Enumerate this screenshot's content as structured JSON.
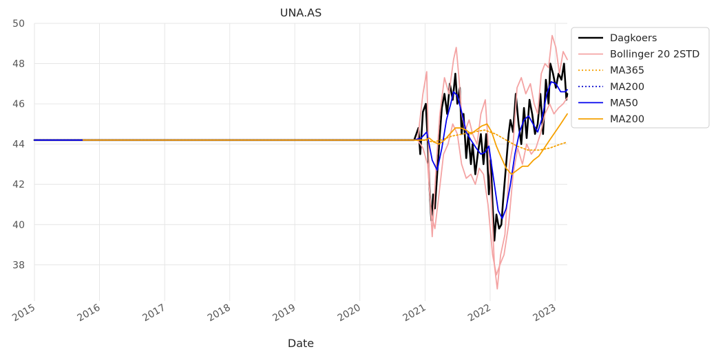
{
  "chart_data": {
    "type": "line",
    "title": "UNA.AS",
    "xlabel": "Date",
    "ylabel": "",
    "xlim": [
      "2015-01-01",
      "2023-03-10"
    ],
    "ylim": [
      36.2,
      50.0
    ],
    "y_ticks": [
      38,
      40,
      42,
      44,
      46,
      48,
      50
    ],
    "x_ticks": [
      "2015",
      "2016",
      "2017",
      "2018",
      "2019",
      "2020",
      "2021",
      "2022",
      "2023"
    ],
    "grid": true,
    "legend_position": "outside-upper-right",
    "series": [
      {
        "name": "Dagkoers",
        "color": "#000000",
        "style": "solid",
        "x": [
          "2015-01-01",
          "2020-11-01",
          "2020-11-25",
          "2020-12-05",
          "2020-12-20",
          "2021-01-05",
          "2021-01-15",
          "2021-01-25",
          "2021-02-05",
          "2021-02-15",
          "2021-02-25",
          "2021-03-10",
          "2021-03-25",
          "2021-04-05",
          "2021-04-20",
          "2021-05-05",
          "2021-05-20",
          "2021-06-05",
          "2021-06-20",
          "2021-07-01",
          "2021-07-15",
          "2021-07-25",
          "2021-08-05",
          "2021-08-20",
          "2021-09-01",
          "2021-09-15",
          "2021-09-25",
          "2021-10-10",
          "2021-10-25",
          "2021-11-10",
          "2021-11-25",
          "2021-12-10",
          "2021-12-25",
          "2022-01-05",
          "2022-01-15",
          "2022-01-25",
          "2022-02-05",
          "2022-02-20",
          "2022-03-05",
          "2022-03-15",
          "2022-04-01",
          "2022-04-15",
          "2022-04-25",
          "2022-05-10",
          "2022-05-25",
          "2022-06-10",
          "2022-06-25",
          "2022-07-10",
          "2022-07-25",
          "2022-08-10",
          "2022-08-25",
          "2022-09-10",
          "2022-09-25",
          "2022-10-10",
          "2022-10-25",
          "2022-11-10",
          "2022-11-25",
          "2022-12-05",
          "2022-12-20",
          "2023-01-05",
          "2023-01-20",
          "2023-02-05",
          "2023-02-20",
          "2023-03-05",
          "2023-03-10"
        ],
        "y": [
          44.2,
          44.2,
          44.8,
          43.5,
          45.6,
          46.0,
          44.3,
          42.0,
          40.2,
          41.5,
          40.8,
          42.5,
          44.5,
          45.8,
          46.5,
          45.5,
          47.0,
          46.2,
          47.5,
          46.0,
          46.8,
          44.5,
          45.5,
          43.3,
          44.5,
          43.0,
          44.0,
          42.5,
          43.6,
          44.5,
          43.0,
          44.5,
          41.5,
          43.2,
          41.0,
          39.2,
          40.5,
          39.8,
          40.0,
          41.2,
          43.0,
          44.5,
          45.2,
          44.6,
          46.5,
          45.0,
          44.0,
          45.8,
          44.3,
          46.2,
          45.5,
          44.5,
          45.0,
          46.5,
          44.5,
          47.2,
          46.0,
          48.0,
          47.5,
          46.8,
          47.5,
          47.2,
          48.0,
          46.2,
          46.5
        ]
      },
      {
        "name": "Bollinger 20 2STD",
        "color": "#f4a3a3",
        "style": "solid",
        "x": [
          "2015-01-01",
          "2020-11-20",
          "2020-12-20",
          "2021-01-10",
          "2021-01-25",
          "2021-02-10",
          "2021-03-05",
          "2021-03-25",
          "2021-04-20",
          "2021-05-15",
          "2021-06-10",
          "2021-06-25",
          "2021-07-10",
          "2021-07-25",
          "2021-08-15",
          "2021-09-05",
          "2021-09-25",
          "2021-10-20",
          "2021-11-10",
          "2021-12-05",
          "2021-12-25",
          "2022-01-10",
          "2022-01-25",
          "2022-02-10",
          "2022-03-01",
          "2022-03-25",
          "2022-04-20",
          "2022-05-10",
          "2022-06-01",
          "2022-06-25",
          "2022-07-20",
          "2022-08-15",
          "2022-09-05",
          "2022-09-25",
          "2022-10-15",
          "2022-11-05",
          "2022-11-25",
          "2022-12-15",
          "2023-01-05",
          "2023-01-25",
          "2023-02-15",
          "2023-03-10"
        ],
        "y": [
          44.2,
          44.2,
          46.5,
          47.6,
          42.0,
          39.4,
          43.0,
          45.5,
          47.3,
          46.5,
          48.2,
          48.8,
          47.3,
          45.5,
          44.7,
          45.2,
          44.5,
          44.0,
          45.5,
          46.2,
          43.5,
          41.0,
          38.0,
          36.8,
          38.5,
          39.5,
          43.0,
          44.0,
          46.8,
          47.3,
          46.5,
          47.0,
          46.0,
          45.5,
          47.5,
          48.0,
          47.8,
          49.4,
          48.8,
          47.5,
          48.6,
          48.2
        ]
      },
      {
        "name": "Bollinger 20 2STD",
        "color": "#f4a3a3",
        "style": "solid",
        "x": [
          "2020-11-20",
          "2020-12-20",
          "2021-01-15",
          "2021-02-05",
          "2021-02-25",
          "2021-03-20",
          "2021-04-15",
          "2021-05-10",
          "2021-06-05",
          "2021-07-01",
          "2021-07-25",
          "2021-08-20",
          "2021-09-15",
          "2021-10-10",
          "2021-11-01",
          "2021-11-25",
          "2021-12-20",
          "2022-01-15",
          "2022-02-05",
          "2022-02-25",
          "2022-03-20",
          "2022-04-15",
          "2022-05-10",
          "2022-06-05",
          "2022-07-01",
          "2022-07-25",
          "2022-08-20",
          "2022-09-15",
          "2022-10-10",
          "2022-11-05",
          "2022-12-01",
          "2022-12-25",
          "2023-01-20",
          "2023-02-15",
          "2023-03-10"
        ],
        "y": [
          44.2,
          43.8,
          43.0,
          40.5,
          39.8,
          41.5,
          43.5,
          44.0,
          45.0,
          44.5,
          43.0,
          42.3,
          42.5,
          42.0,
          42.8,
          42.5,
          41.0,
          38.5,
          37.5,
          38.0,
          38.5,
          40.0,
          42.5,
          43.8,
          43.0,
          44.0,
          43.5,
          43.8,
          44.5,
          45.5,
          46.0,
          45.5,
          45.8,
          46.0,
          46.3
        ]
      },
      {
        "name": "MA365",
        "color": "#f5a000",
        "style": "dotted",
        "x": [
          "2015-01-01",
          "2021-01-01",
          "2021-02-15",
          "2021-04-01",
          "2021-06-01",
          "2021-08-01",
          "2021-10-01",
          "2021-12-01",
          "2022-02-01",
          "2022-04-01",
          "2022-06-01",
          "2022-08-01",
          "2022-10-01",
          "2022-12-01",
          "2023-02-01",
          "2023-03-10"
        ],
        "y": [
          44.2,
          44.2,
          44.1,
          44.2,
          44.4,
          44.5,
          44.6,
          44.7,
          44.5,
          44.2,
          43.9,
          43.7,
          43.7,
          43.8,
          44.0,
          44.1
        ]
      },
      {
        "name": "MA200",
        "color": "#1010d0",
        "style": "dotted",
        "x": [
          "2015-01-01",
          "2015-10-01"
        ],
        "y": [
          44.2,
          44.2
        ]
      },
      {
        "name": "MA50",
        "color": "#0000ee",
        "style": "solid",
        "x": [
          "2015-01-01",
          "2020-11-01",
          "2020-12-10",
          "2021-01-10",
          "2021-02-10",
          "2021-03-10",
          "2021-04-05",
          "2021-05-01",
          "2021-05-25",
          "2021-06-10",
          "2021-07-01",
          "2021-07-25",
          "2021-08-20",
          "2021-09-15",
          "2021-10-15",
          "2021-11-10",
          "2021-12-05",
          "2021-12-25",
          "2022-01-20",
          "2022-02-15",
          "2022-03-10",
          "2022-04-01",
          "2022-04-25",
          "2022-05-20",
          "2022-06-15",
          "2022-07-10",
          "2022-08-05",
          "2022-08-30",
          "2022-09-25",
          "2022-10-20",
          "2022-11-15",
          "2022-12-10",
          "2023-01-05",
          "2023-02-01",
          "2023-02-25",
          "2023-03-10"
        ],
        "y": [
          44.2,
          44.2,
          44.3,
          44.6,
          43.2,
          42.7,
          43.8,
          45.2,
          46.0,
          46.6,
          46.4,
          45.6,
          44.6,
          44.2,
          43.8,
          43.5,
          43.6,
          43.9,
          42.3,
          40.7,
          40.3,
          40.8,
          42.0,
          43.5,
          44.6,
          45.2,
          45.4,
          45.0,
          44.6,
          45.3,
          46.5,
          47.1,
          47.0,
          46.6,
          46.6,
          46.7
        ]
      },
      {
        "name": "MA200",
        "color": "#f5a000",
        "style": "solid",
        "x": [
          "2015-10-01",
          "2020-11-01",
          "2020-12-01",
          "2021-01-01",
          "2021-01-25",
          "2021-02-20",
          "2021-03-20",
          "2021-04-20",
          "2021-05-20",
          "2021-06-20",
          "2021-07-20",
          "2021-08-20",
          "2021-09-15",
          "2021-10-15",
          "2021-11-15",
          "2021-12-15",
          "2022-01-10",
          "2022-02-05",
          "2022-03-01",
          "2022-04-01",
          "2022-05-01",
          "2022-06-01",
          "2022-07-01",
          "2022-08-01",
          "2022-09-01",
          "2022-10-01",
          "2022-11-01",
          "2022-12-01",
          "2023-01-01",
          "2023-02-01",
          "2023-03-10"
        ],
        "y": [
          44.2,
          44.2,
          44.2,
          44.2,
          44.3,
          44.1,
          44.0,
          44.2,
          44.5,
          44.8,
          44.8,
          44.7,
          44.5,
          44.7,
          44.9,
          45.0,
          44.6,
          43.9,
          43.4,
          42.8,
          42.5,
          42.7,
          42.9,
          42.9,
          43.2,
          43.4,
          43.8,
          44.2,
          44.6,
          45.0,
          45.5
        ]
      }
    ]
  },
  "legend": [
    {
      "label": "Dagkoers",
      "color": "#000000",
      "style": "solid",
      "width": 2.6
    },
    {
      "label": "Bollinger 20 2STD",
      "color": "#f4a3a3",
      "style": "solid",
      "width": 1.8
    },
    {
      "label": "MA365",
      "color": "#f5a000",
      "style": "dotted",
      "width": 1.8
    },
    {
      "label": "MA200",
      "color": "#1010d0",
      "style": "dotted",
      "width": 1.8
    },
    {
      "label": "MA50",
      "color": "#0000ee",
      "style": "solid",
      "width": 1.8
    },
    {
      "label": "MA200",
      "color": "#f5a000",
      "style": "solid",
      "width": 1.8
    }
  ]
}
